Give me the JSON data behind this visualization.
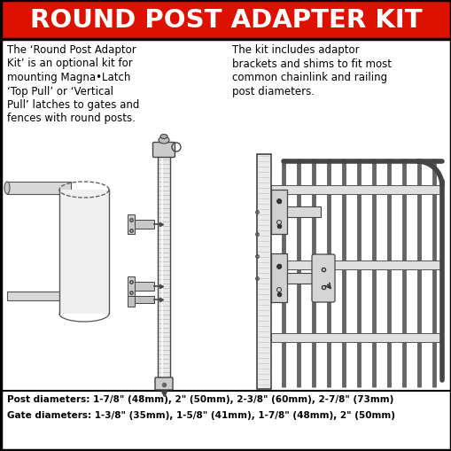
{
  "title": "ROUND POST ADAPTER KIT",
  "title_bg": "#DD1100",
  "title_color": "#FFFFFF",
  "left_text_lines": [
    "The ‘Round Post Adaptor",
    "Kit’ is an optional kit for",
    "mounting Magna•Latch",
    "‘Top Pull’ or ‘Vertical",
    "Pull’ latches to gates and",
    "fences with round posts."
  ],
  "right_text_lines": [
    "The kit includes adaptor",
    "brackets and shims to fit most",
    "common chainlink and railing",
    "post diameters."
  ],
  "bottom_line1": "Post diameters: 1-7/8\" (48mm), 2\" (50mm), 2-3/8\" (60mm), 2-7/8\" (73mm)",
  "bottom_line2": "Gate diameters: 1-3/8\" (35mm), 1-5/8\" (41mm), 1-7/8\" (48mm), 2\" (50mm)",
  "bg_color": "#FFFFFF",
  "border_color": "#000000"
}
